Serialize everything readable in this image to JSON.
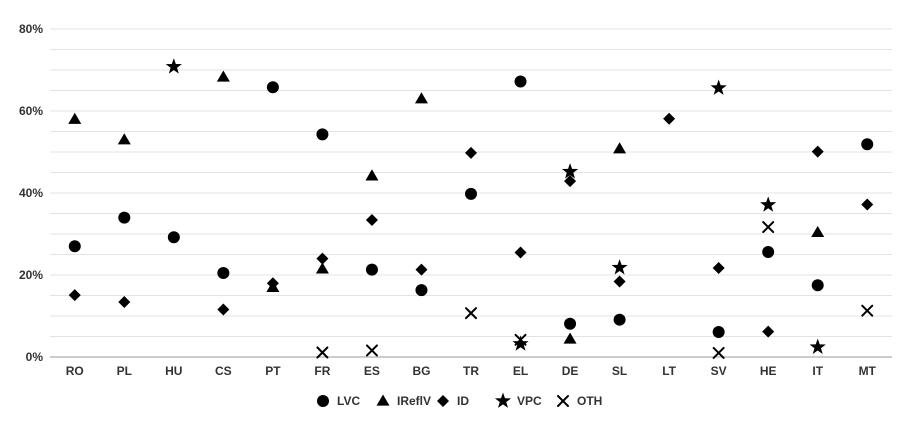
{
  "chart_data": {
    "type": "scatter",
    "categories": [
      "RO",
      "PL",
      "HU",
      "CS",
      "PT",
      "FR",
      "ES",
      "BG",
      "TR",
      "EL",
      "DE",
      "SL",
      "LT",
      "SV",
      "HE",
      "IT",
      "MT"
    ],
    "y_ticks": [
      "0%",
      "20%",
      "40%",
      "60%",
      "80%"
    ],
    "ylim": [
      0,
      80
    ],
    "y_unit": "%",
    "grid": true,
    "legend_position": "bottom",
    "series": [
      {
        "name": "LVC",
        "marker": "circle",
        "values": [
          27,
          34,
          29.2,
          20.5,
          65.8,
          54.3,
          21.3,
          16.3,
          39.8,
          67.2,
          8.1,
          9.1,
          null,
          6.1,
          25.6,
          17.5,
          51.9
        ]
      },
      {
        "name": "IReflV",
        "marker": "triangle",
        "values": [
          58,
          53,
          null,
          68.3,
          17,
          21.5,
          44.2,
          63,
          null,
          null,
          4.4,
          50.8,
          null,
          null,
          null,
          30.4,
          null
        ]
      },
      {
        "name": "ID",
        "marker": "diamond",
        "values": [
          15.1,
          13.4,
          null,
          11.6,
          18,
          24,
          33.4,
          21.3,
          49.8,
          25.5,
          42.9,
          18.4,
          58.1,
          21.7,
          6.2,
          50.1,
          37.2
        ]
      },
      {
        "name": "VPC",
        "marker": "star",
        "values": [
          null,
          null,
          70.8,
          null,
          null,
          null,
          null,
          null,
          null,
          3.2,
          45.2,
          21.8,
          null,
          65.6,
          37.1,
          2.4,
          null
        ]
      },
      {
        "name": "OTH",
        "marker": "cross",
        "values": [
          null,
          null,
          null,
          null,
          null,
          1.1,
          1.6,
          null,
          10.7,
          4.2,
          null,
          null,
          null,
          1,
          31.7,
          null,
          11.3
        ]
      }
    ]
  }
}
